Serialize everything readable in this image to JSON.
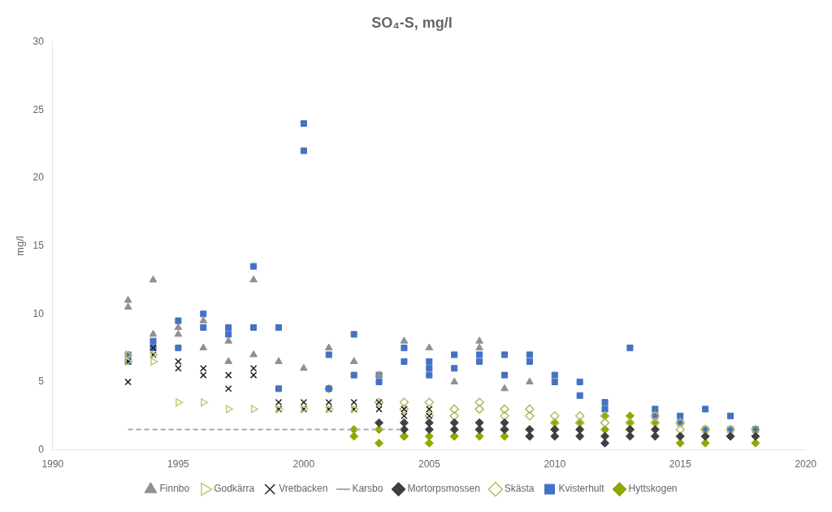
{
  "chart_data": {
    "type": "scatter",
    "title": "SO₄-S, mg/l",
    "ylabel": "mg/l",
    "xlim": [
      1990,
      2020
    ],
    "ylim": [
      0,
      30
    ],
    "xticks": [
      1990,
      1995,
      2000,
      2005,
      2010,
      2015,
      2020
    ],
    "yticks": [
      0,
      5,
      10,
      15,
      20,
      25,
      30
    ],
    "grid": false,
    "legend": "bottom",
    "series": [
      {
        "name": "Finnbo",
        "type": "scatter",
        "marker": "triangle",
        "color": "#909090",
        "x": [
          1993,
          1993,
          1994,
          1994,
          1995,
          1995,
          1996,
          1996,
          1997,
          1997,
          1998,
          1998,
          1999,
          2000,
          2001,
          2002,
          2003,
          2004,
          2005,
          2006,
          2007,
          2007,
          2008,
          2009
        ],
        "values": [
          10.5,
          11.0,
          12.5,
          8.5,
          8.5,
          9.0,
          9.5,
          7.5,
          8.0,
          6.5,
          12.5,
          7.0,
          6.5,
          6.0,
          7.5,
          6.5,
          5.5,
          8.0,
          7.5,
          5.0,
          7.5,
          8.0,
          4.5,
          5.0
        ]
      },
      {
        "name": "Godkärra",
        "type": "scatter",
        "marker": "open_triangle_right",
        "color": "#c8c878",
        "x": [
          1993,
          1993,
          1994,
          1994,
          1995,
          1996,
          1997,
          1998,
          1999,
          2000,
          2001,
          2002
        ],
        "values": [
          7.0,
          6.5,
          6.5,
          7.0,
          3.5,
          3.5,
          3.0,
          3.0,
          3.0,
          3.0,
          3.0,
          3.0
        ]
      },
      {
        "name": "Vretbacken",
        "type": "scatter",
        "marker": "x",
        "color": "#202020",
        "x": [
          1993,
          1993,
          1994,
          1994,
          1995,
          1995,
          1996,
          1996,
          1997,
          1997,
          1998,
          1998,
          1999,
          1999,
          2000,
          2000,
          2001,
          2001,
          2002,
          2002,
          2003,
          2003,
          2004,
          2004,
          2005,
          2005
        ],
        "values": [
          6.5,
          5.0,
          7.5,
          7.0,
          6.0,
          6.5,
          5.5,
          6.0,
          5.5,
          4.5,
          5.5,
          6.0,
          3.0,
          3.5,
          3.5,
          3.0,
          3.0,
          3.5,
          3.0,
          3.5,
          3.0,
          3.5,
          3.0,
          2.5,
          3.0,
          2.5
        ]
      },
      {
        "name": "Karsbo",
        "type": "line",
        "line_style": "dashed",
        "color": "#aaaaaa",
        "x": [
          1993,
          1994,
          1995,
          1996,
          1997,
          1998,
          1999,
          2000,
          2001,
          2002,
          2003,
          2004
        ],
        "values": [
          1.5,
          1.5,
          1.5,
          1.5,
          1.5,
          1.5,
          1.5,
          1.5,
          1.5,
          1.5,
          1.5,
          1.5
        ]
      },
      {
        "name": "Mortorpsmossen",
        "type": "scatter",
        "marker": "diamond",
        "color": "#404040",
        "x": [
          2003,
          2004,
          2004,
          2005,
          2005,
          2006,
          2006,
          2007,
          2007,
          2008,
          2008,
          2009,
          2009,
          2010,
          2010,
          2011,
          2011,
          2012,
          2012,
          2013,
          2013,
          2014,
          2014,
          2015,
          2016,
          2017,
          2018
        ],
        "values": [
          2.0,
          2.0,
          1.5,
          1.5,
          2.0,
          1.5,
          2.0,
          1.5,
          2.0,
          1.5,
          2.0,
          1.5,
          1.0,
          1.5,
          1.0,
          1.5,
          1.0,
          1.0,
          0.5,
          1.0,
          1.5,
          1.0,
          1.5,
          1.0,
          1.0,
          1.0,
          1.0
        ]
      },
      {
        "name": "Skästa",
        "type": "scatter",
        "marker": "open_diamond",
        "color": "#b8b860",
        "x": [
          2003,
          2004,
          2004,
          2005,
          2005,
          2006,
          2006,
          2007,
          2007,
          2008,
          2008,
          2009,
          2009,
          2010,
          2010,
          2011,
          2011,
          2012,
          2012,
          2013,
          2013,
          2014,
          2014,
          2015,
          2015,
          2016,
          2016,
          2017,
          2018
        ],
        "values": [
          3.5,
          3.5,
          3.0,
          3.5,
          2.5,
          3.0,
          2.5,
          3.0,
          3.5,
          2.5,
          3.0,
          2.5,
          3.0,
          2.5,
          2.0,
          2.5,
          2.0,
          2.5,
          2.0,
          2.0,
          1.5,
          2.0,
          2.5,
          2.0,
          1.5,
          1.5,
          1.5,
          1.5,
          1.5
        ]
      },
      {
        "name": "Kvisterhult",
        "type": "scatter",
        "marker": "square",
        "color": "#4472c4",
        "x": [
          1993,
          1993,
          1994,
          1994,
          1995,
          1995,
          1996,
          1996,
          1997,
          1997,
          1998,
          1998,
          1999,
          1999,
          2000,
          2000,
          2001,
          2001,
          2002,
          2002,
          2003,
          2003,
          2004,
          2004,
          2005,
          2005,
          2005,
          2006,
          2006,
          2007,
          2007,
          2008,
          2008,
          2009,
          2009,
          2010,
          2010,
          2011,
          2011,
          2012,
          2012,
          2013,
          2014,
          2014,
          2015,
          2015,
          2016,
          2016,
          2017,
          2017,
          2018,
          2018
        ],
        "values": [
          7.0,
          6.5,
          7.5,
          8.0,
          7.5,
          9.5,
          9.0,
          10.0,
          9.0,
          8.5,
          13.5,
          9.0,
          9.0,
          4.5,
          22.0,
          24.0,
          7.0,
          4.5,
          8.5,
          5.5,
          5.5,
          5.0,
          7.5,
          6.5,
          6.5,
          6.0,
          5.5,
          7.0,
          6.0,
          7.0,
          6.5,
          7.0,
          5.5,
          7.0,
          6.5,
          5.0,
          5.5,
          5.0,
          4.0,
          3.5,
          3.0,
          7.5,
          3.0,
          2.5,
          2.5,
          2.0,
          3.0,
          1.5,
          2.5,
          1.5,
          1.5,
          1.5
        ]
      },
      {
        "name": "Hyttskogen",
        "type": "scatter",
        "marker": "diamond",
        "color": "#8aab00",
        "x": [
          2001,
          2002,
          2002,
          2003,
          2003,
          2004,
          2004,
          2005,
          2005,
          2006,
          2006,
          2007,
          2007,
          2008,
          2008,
          2009,
          2009,
          2010,
          2010,
          2011,
          2011,
          2012,
          2012,
          2013,
          2013,
          2014,
          2015,
          2015,
          2016,
          2016,
          2017,
          2017,
          2018
        ],
        "values": [
          4.5,
          1.0,
          1.5,
          0.5,
          1.5,
          1.0,
          1.0,
          0.5,
          1.0,
          1.0,
          1.0,
          1.0,
          1.5,
          1.0,
          1.5,
          1.0,
          1.5,
          1.5,
          2.0,
          1.5,
          2.0,
          1.5,
          2.5,
          2.0,
          2.5,
          2.0,
          1.0,
          0.5,
          1.0,
          0.5,
          1.0,
          1.0,
          0.5
        ]
      }
    ]
  }
}
